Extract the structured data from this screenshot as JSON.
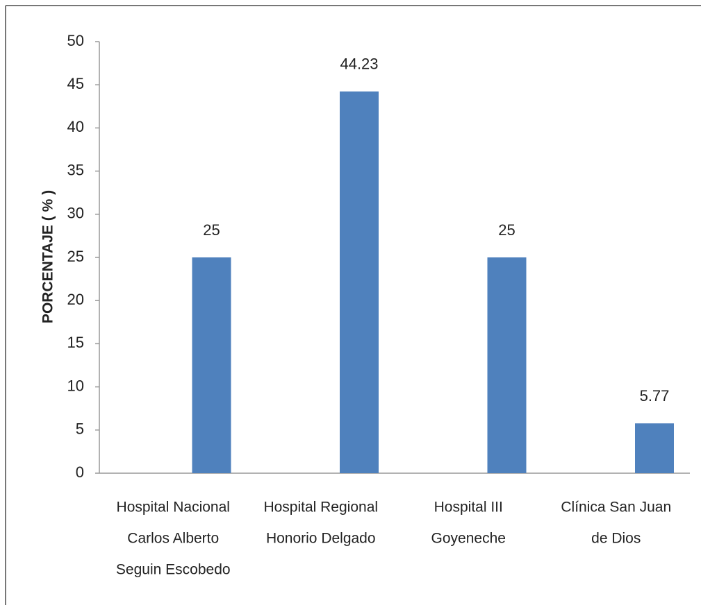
{
  "chart_data": {
    "type": "bar",
    "y_label": "PORCENTAJE ( % )",
    "categories": [
      [
        "Hospital Nacional",
        "Carlos Alberto",
        "Seguin Escobedo"
      ],
      [
        "Hospital Regional",
        "Honorio Delgado"
      ],
      [
        "Hospital III",
        "Goyeneche"
      ],
      [
        "Clínica San Juan",
        "de Dios"
      ]
    ],
    "values": [
      25,
      44.23,
      25,
      5.77
    ],
    "color": "#4f81bd",
    "ylim": [
      0,
      50
    ],
    "yticks": [
      0,
      5,
      10,
      15,
      20,
      25,
      30,
      35,
      40,
      45,
      50
    ],
    "grid": false
  }
}
